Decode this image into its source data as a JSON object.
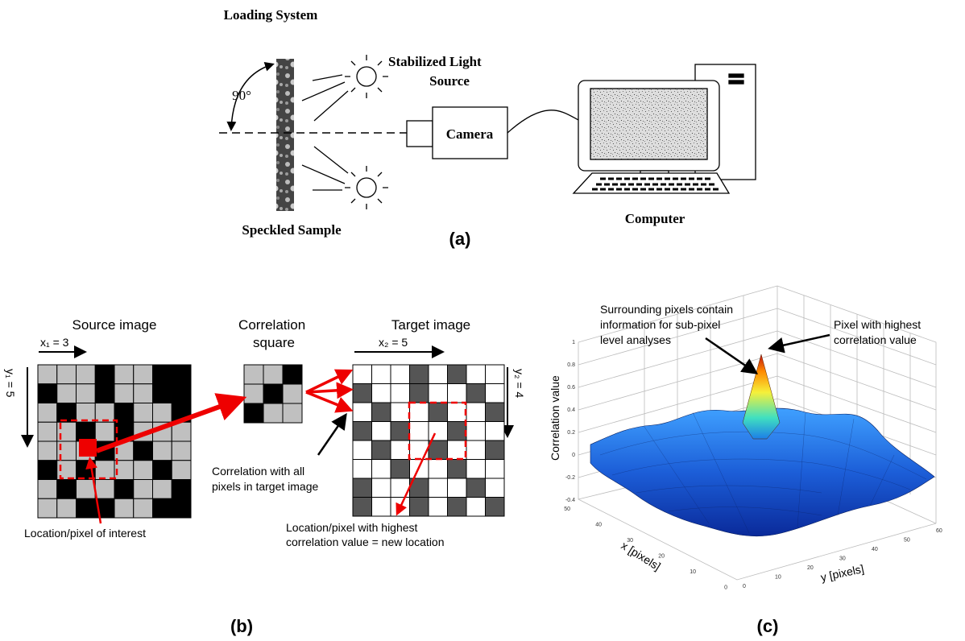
{
  "panel_a": {
    "title": "Loading System",
    "light_source": [
      "Stabilized Light",
      "Source"
    ],
    "angle": "90°",
    "camera": "Camera",
    "sample": "Speckled Sample",
    "computer": "Computer",
    "label": "(a)"
  },
  "panel_b": {
    "source_title": "Source image",
    "source_x": "x₁ = 3",
    "source_y": "y₁ = 5",
    "square_title": [
      "Correlation",
      "square"
    ],
    "target_title": "Target image",
    "target_x": "x₂ = 5",
    "target_y": "y₂ = 4",
    "correlation_note": [
      "Correlation with all",
      "pixels in target image"
    ],
    "interest_note": "Location/pixel of interest",
    "new_location_note": [
      "Location/pixel with highest",
      "correlation value = new location"
    ],
    "label": "(b)"
  },
  "panel_c": {
    "surrounding_note": [
      "Surrounding pixels contain",
      "information for sub-pixel",
      "level analyses"
    ],
    "peak_note": [
      "Pixel with highest",
      "correlation value"
    ],
    "z_axis": "Correlation value",
    "x_axis": "x [pixels]",
    "y_axis": "y [pixels]",
    "z_ticks": [
      "1",
      "0.8",
      "0.6",
      "0.4",
      "0.2",
      "0",
      "-0.2",
      "-0.4"
    ],
    "x_ticks": [
      "50",
      "40",
      "30",
      "20",
      "10",
      "0"
    ],
    "y_ticks": [
      "0",
      "10",
      "20",
      "30",
      "40",
      "50",
      "60"
    ],
    "label": "(c)"
  }
}
